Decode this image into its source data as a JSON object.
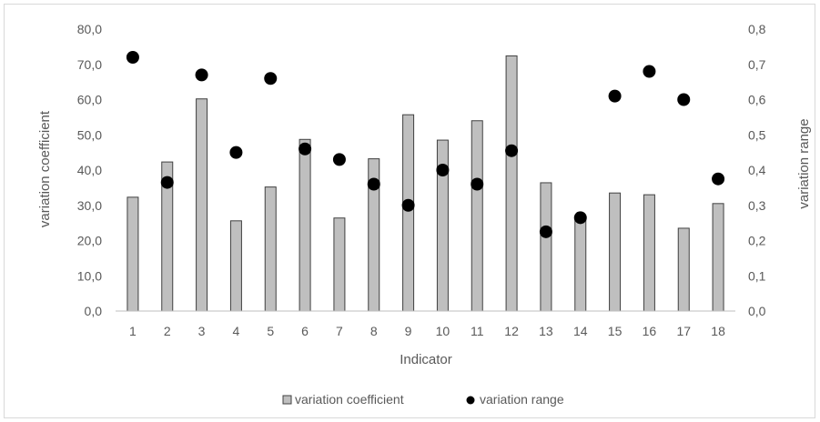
{
  "chart_data": {
    "type": "bar",
    "categories": [
      "1",
      "2",
      "3",
      "4",
      "5",
      "6",
      "7",
      "8",
      "9",
      "10",
      "11",
      "12",
      "13",
      "14",
      "15",
      "16",
      "17",
      "18"
    ],
    "series": [
      {
        "name": "variation coefficient",
        "kind": "bar",
        "axis": "left",
        "color": "#bfbfbf",
        "values": [
          32.3,
          42.3,
          60.2,
          25.6,
          35.2,
          48.7,
          26.4,
          43.2,
          55.7,
          48.5,
          54.0,
          72.4,
          36.4,
          26.0,
          33.5,
          33.0,
          23.5,
          30.5
        ]
      },
      {
        "name": "variation range",
        "kind": "scatter",
        "axis": "right",
        "color": "#000000",
        "values": [
          0.72,
          0.365,
          0.67,
          0.45,
          0.66,
          0.46,
          0.43,
          0.36,
          0.3,
          0.4,
          0.36,
          0.455,
          0.225,
          0.265,
          0.61,
          0.68,
          0.6,
          0.375
        ]
      }
    ],
    "xlabel": "Indicator",
    "ylabel": "variation coefficient",
    "y2label": "variation range",
    "ylim": [
      0,
      80
    ],
    "y2lim": [
      0,
      0.8
    ],
    "yticks": [
      "0,0",
      "10,0",
      "20,0",
      "30,0",
      "40,0",
      "50,0",
      "60,0",
      "70,0",
      "80,0"
    ],
    "y2ticks": [
      "0,0",
      "0,1",
      "0,2",
      "0,3",
      "0,4",
      "0,5",
      "0,6",
      "0,7",
      "0,8"
    ],
    "grid": false,
    "legend": "bottom"
  }
}
